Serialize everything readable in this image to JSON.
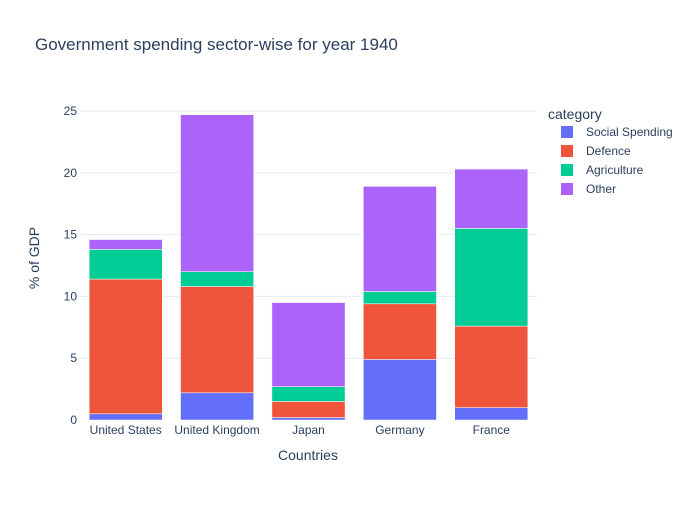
{
  "chart_data": {
    "type": "bar",
    "barmode": "stack",
    "title": "Government spending sector-wise for year 1940",
    "xlabel": "Countries",
    "ylabel": "% of GDP",
    "ylim": [
      0,
      25
    ],
    "yticks": [
      0,
      5,
      10,
      15,
      20,
      25
    ],
    "grid": true,
    "legend_title": "category",
    "legend_position": "top-right",
    "categories": [
      "United States",
      "United Kingdom",
      "Japan",
      "Germany",
      "France"
    ],
    "series": [
      {
        "name": "Social Spending",
        "color": "#636efa",
        "values": [
          0.5,
          2.2,
          0.2,
          4.9,
          1.0
        ]
      },
      {
        "name": "Defence",
        "color": "#EF553B",
        "values": [
          10.9,
          8.6,
          1.3,
          4.5,
          6.6
        ]
      },
      {
        "name": "Agriculture",
        "color": "#00cc96",
        "values": [
          2.4,
          1.2,
          1.2,
          1.0,
          7.9
        ]
      },
      {
        "name": "Other",
        "color": "#ab63fa",
        "values": [
          0.8,
          12.7,
          6.8,
          8.5,
          4.8
        ]
      }
    ]
  },
  "colors": {
    "background": "#ffffff",
    "plot_background": "#ffffff",
    "grid": "#e5ecf6",
    "text": "#2a3f5f",
    "tick_text": "#2a3f5f"
  }
}
